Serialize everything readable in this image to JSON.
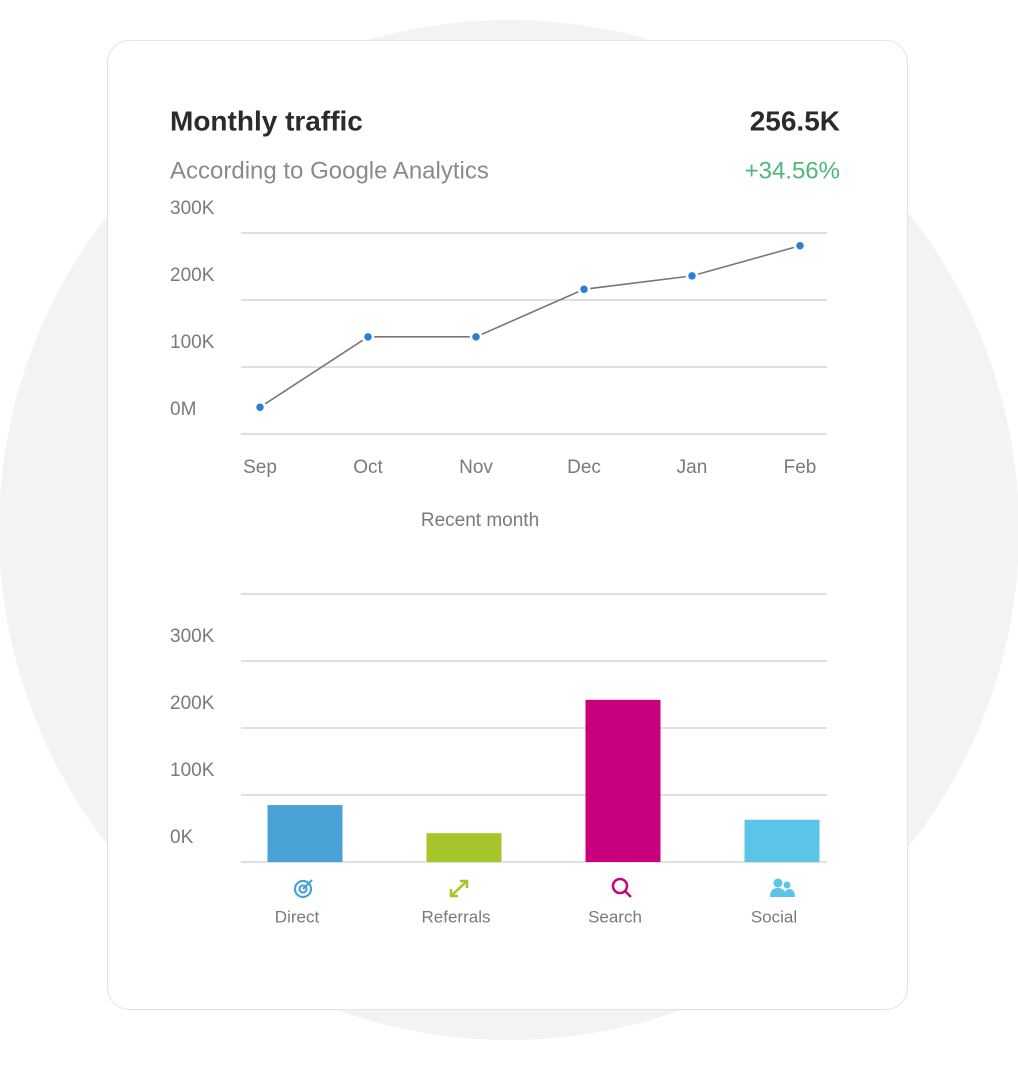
{
  "header": {
    "title": "Monthly traffic",
    "subtitle": "According to Google Analytics",
    "total": "256.5K",
    "change": "+34.56%"
  },
  "chart_data": [
    {
      "type": "line",
      "x_label": "Recent month",
      "categories": [
        "Sep",
        "Oct",
        "Nov",
        "Dec",
        "Jan",
        "Feb"
      ],
      "values": [
        40000,
        145000,
        145000,
        216000,
        236000,
        281000
      ],
      "color": "#2a7fd4",
      "line_color": "#777777",
      "ylim": [
        0,
        300000
      ],
      "yticks": [
        {
          "value": 0,
          "label": "0M"
        },
        {
          "value": 100000,
          "label": "100K"
        },
        {
          "value": 200000,
          "label": "200K"
        },
        {
          "value": 300000,
          "label": "300K"
        }
      ],
      "grid": true
    },
    {
      "type": "bar",
      "categories": [
        "Direct",
        "Referrals",
        "Search",
        "Social"
      ],
      "values": [
        85000,
        43000,
        242000,
        63000
      ],
      "colors": [
        "#4aa3d6",
        "#a4c62a",
        "#c8007e",
        "#5bc5e8"
      ],
      "ylim": [
        0,
        400000
      ],
      "yticks": [
        {
          "value": 0,
          "label": "0K"
        },
        {
          "value": 100000,
          "label": "100K"
        },
        {
          "value": 200000,
          "label": "200K"
        },
        {
          "value": 300000,
          "label": "300K"
        }
      ],
      "grid": true
    }
  ]
}
